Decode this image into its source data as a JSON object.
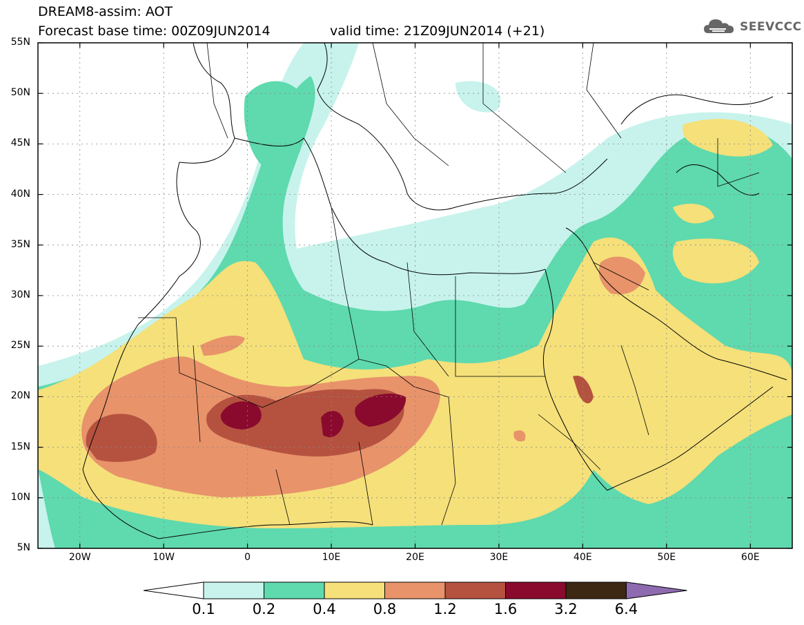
{
  "header": {
    "line1": "DREAM8-assim: AOT",
    "line2": "Forecast base time: 00Z09JUN2014",
    "line3": "valid time: 21Z09JUN2014 (+21)",
    "logo_text": "SEEVCCC",
    "logo_icon": "cloud-icon"
  },
  "map": {
    "lon_range": [
      -25,
      65
    ],
    "lat_range": [
      5,
      55
    ],
    "lat_ticks": [
      {
        "value": 55,
        "label": "55N"
      },
      {
        "value": 50,
        "label": "50N"
      },
      {
        "value": 45,
        "label": "45N"
      },
      {
        "value": 40,
        "label": "40N"
      },
      {
        "value": 35,
        "label": "35N"
      },
      {
        "value": 30,
        "label": "30N"
      },
      {
        "value": 25,
        "label": "25N"
      },
      {
        "value": 20,
        "label": "20N"
      },
      {
        "value": 15,
        "label": "15N"
      },
      {
        "value": 10,
        "label": "10N"
      },
      {
        "value": 5,
        "label": "5N"
      }
    ],
    "lon_ticks": [
      {
        "value": -20,
        "label": "20W"
      },
      {
        "value": -10,
        "label": "10W"
      },
      {
        "value": 0,
        "label": "0"
      },
      {
        "value": 10,
        "label": "10E"
      },
      {
        "value": 20,
        "label": "20E"
      },
      {
        "value": 30,
        "label": "30E"
      },
      {
        "value": 40,
        "label": "40E"
      },
      {
        "value": 50,
        "label": "50E"
      },
      {
        "value": 60,
        "label": "60E"
      }
    ]
  },
  "colorbar": {
    "levels": [
      "0.1",
      "0.2",
      "0.4",
      "0.8",
      "1.2",
      "1.6",
      "3.2",
      "6.4"
    ],
    "colors": [
      "#ffffff",
      "#c7f3ec",
      "#5fd9ae",
      "#f5e07a",
      "#e8936a",
      "#b5523f",
      "#8a0a2e",
      "#3d2814",
      "#8e6bb0"
    ]
  }
}
